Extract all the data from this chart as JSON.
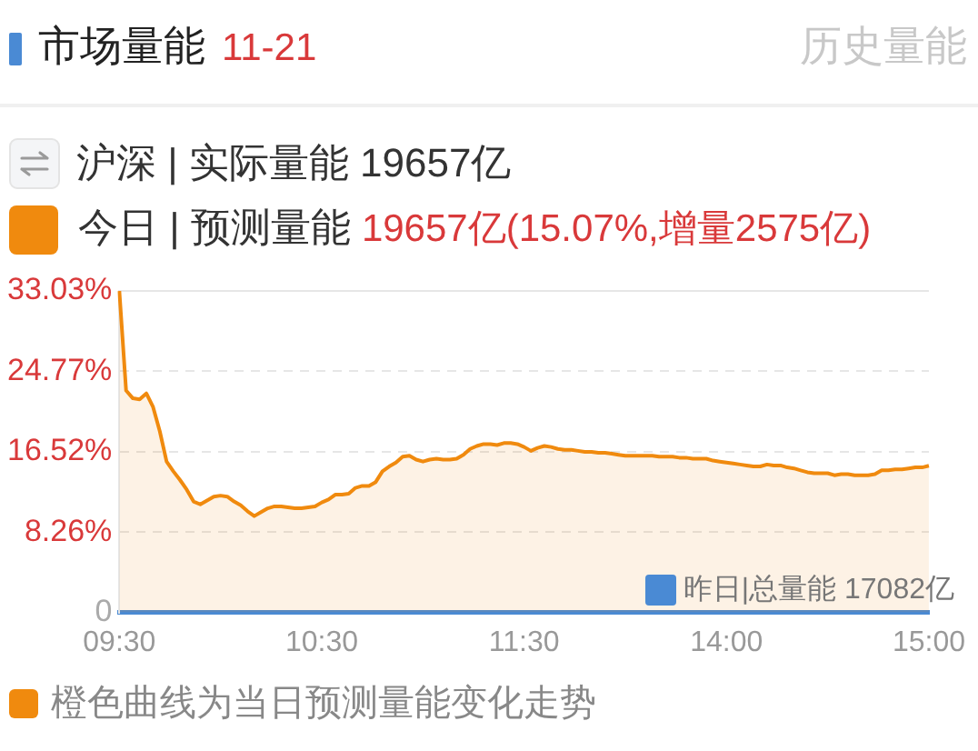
{
  "chart_data": {
    "type": "area",
    "title": "市场量能",
    "subtitle": "11-21",
    "annotations": [
      "历史量能",
      "沪深 | 实际量能 19657亿",
      "19657亿(15.07%,增量2575亿)",
      "橙色曲线为当日预测量能变化走势",
      {
        "text": "昨日|总量能 17082亿",
        "y": 0
      }
    ],
    "categories": [
      "09:30",
      null,
      null,
      null,
      null,
      null,
      null,
      null,
      null,
      null,
      null,
      null,
      null,
      null,
      null,
      null,
      null,
      null,
      null,
      null,
      null,
      null,
      null,
      null,
      null,
      null,
      null,
      null,
      null,
      null,
      "10:30",
      null,
      null,
      null,
      null,
      null,
      null,
      null,
      null,
      null,
      null,
      null,
      null,
      null,
      null,
      null,
      null,
      null,
      null,
      null,
      null,
      null,
      null,
      null,
      null,
      null,
      null,
      null,
      null,
      null,
      "11:30",
      null,
      null,
      null,
      null,
      null,
      null,
      null,
      null,
      null,
      null,
      null,
      null,
      null,
      null,
      null,
      null,
      null,
      null,
      null,
      null,
      null,
      null,
      null,
      null,
      null,
      null,
      null,
      null,
      null,
      "14:00",
      null,
      null,
      null,
      null,
      null,
      null,
      null,
      null,
      null,
      null,
      null,
      null,
      null,
      null,
      null,
      null,
      null,
      null,
      null,
      null,
      null,
      null,
      null,
      null,
      null,
      null,
      null,
      null,
      null,
      "15:00"
    ],
    "series": [
      {
        "name": "今日 | 预测量能",
        "color": "#f08a0e",
        "values": [
          33.03,
          22.8,
          22.0,
          21.9,
          22.5,
          21.1,
          18.6,
          15.5,
          14.5,
          13.6,
          12.6,
          11.4,
          11.1,
          11.5,
          11.9,
          12.0,
          11.9,
          11.4,
          11.0,
          10.4,
          9.9,
          10.3,
          10.7,
          10.9,
          10.9,
          10.8,
          10.7,
          10.7,
          10.8,
          10.9,
          11.3,
          11.6,
          12.1,
          12.1,
          12.2,
          12.8,
          13.0,
          13.0,
          13.4,
          14.5,
          15.0,
          15.4,
          16.0,
          16.1,
          15.7,
          15.5,
          15.7,
          15.8,
          15.7,
          15.7,
          15.8,
          16.2,
          16.8,
          17.1,
          17.3,
          17.3,
          17.2,
          17.4,
          17.4,
          17.3,
          17.0,
          16.6,
          16.9,
          17.1,
          17.0,
          16.8,
          16.7,
          16.7,
          16.6,
          16.5,
          16.5,
          16.4,
          16.4,
          16.3,
          16.2,
          16.1,
          16.1,
          16.1,
          16.1,
          16.1,
          16.0,
          16.0,
          16.0,
          15.9,
          15.9,
          15.8,
          15.8,
          15.8,
          15.6,
          15.5,
          15.4,
          15.3,
          15.2,
          15.1,
          15.0,
          15.0,
          15.2,
          15.1,
          15.1,
          14.9,
          14.8,
          14.6,
          14.4,
          14.3,
          14.3,
          14.3,
          14.1,
          14.2,
          14.2,
          14.1,
          14.1,
          14.1,
          14.2,
          14.6,
          14.6,
          14.7,
          14.7,
          14.8,
          14.9,
          14.9,
          15.07
        ]
      }
    ],
    "ylim": [
      0,
      33.03
    ],
    "yticks": [
      0,
      {
        "value": 8.26,
        "label": "8.26%"
      },
      {
        "value": 16.52,
        "label": "16.52%"
      },
      {
        "value": 24.77,
        "label": "24.77%"
      },
      {
        "value": 33.03,
        "label": "33.03%"
      }
    ],
    "grid": "y",
    "legend": "top left"
  }
}
